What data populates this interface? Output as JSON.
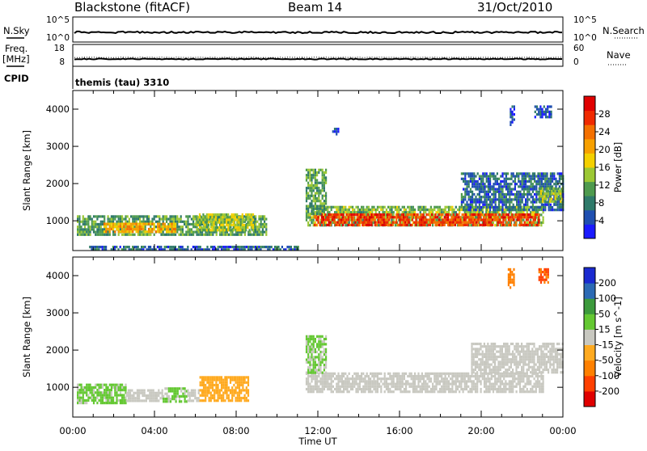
{
  "header": {
    "station": "Blackstone (fitACF)",
    "beam": "Beam 14",
    "date": "31/Oct/2010"
  },
  "top_panels": {
    "nsky_label": "N.Sky",
    "nsky_ticks": [
      "10^5",
      "10^0"
    ],
    "nsearch_label": "N.Search",
    "nsearch_ticks": [
      "10^5",
      "10^0"
    ],
    "freq_label_1": "Freq.",
    "freq_label_2": "[MHz]",
    "freq_ticks": [
      "18",
      "8"
    ],
    "nave_label": "Nave",
    "nave_ticks": [
      "60",
      "0"
    ],
    "cpid_label": "CPID",
    "cpid_value": "themis (tau) 3310"
  },
  "colorbars": {
    "power": {
      "label": "Power [dB]",
      "ticks": [
        "28",
        "24",
        "20",
        "16",
        "12",
        "8",
        "4"
      ],
      "colors": [
        "#1a1aff",
        "#1f4fb0",
        "#2f7a6a",
        "#4e9a4e",
        "#9cc834",
        "#f4d000",
        "#f7a000",
        "#f47000",
        "#f02a00",
        "#e00000"
      ]
    },
    "velocity": {
      "label": "Velocity [m s^-1]",
      "ticks": [
        "200",
        "100",
        "50",
        "15",
        "-15",
        "-50",
        "-100",
        "-200"
      ],
      "colors": [
        "#e00000",
        "#ff4000",
        "#ff8000",
        "#ffaa20",
        "#c8c8c0",
        "#64c832",
        "#3c9a3c",
        "#2c6ab4",
        "#1a2ad0"
      ]
    }
  },
  "chart_data": [
    {
      "type": "heatmap",
      "ylabel": "Slant Range [km]",
      "ylim": [
        200,
        4500
      ],
      "yticks": [
        "4000",
        "3000",
        "2000",
        "1000"
      ],
      "xlim": [
        0,
        24
      ],
      "xticks": [
        "00:00",
        "04:00",
        "08:00",
        "12:00",
        "16:00",
        "20:00",
        "00:00"
      ],
      "xlabel": "Time UT",
      "colorbar": "Power [dB]",
      "value_range": [
        0,
        30
      ],
      "bands": [
        {
          "t": [
            0.2,
            9.5
          ],
          "range": [
            620,
            1150
          ],
          "value": 10
        },
        {
          "t": [
            1.5,
            5.0
          ],
          "range": [
            720,
            950
          ],
          "value": 19
        },
        {
          "t": [
            6.0,
            8.8
          ],
          "range": [
            780,
            1200
          ],
          "value": 14
        },
        {
          "t": [
            11.4,
            23.0
          ],
          "range": [
            850,
            1400
          ],
          "value": 12
        },
        {
          "t": [
            11.8,
            22.8
          ],
          "range": [
            920,
            1200
          ],
          "value": 25
        },
        {
          "t": [
            11.4,
            12.4
          ],
          "range": [
            1200,
            2400
          ],
          "value": 10
        },
        {
          "t": [
            19.0,
            24.0
          ],
          "range": [
            1300,
            2300
          ],
          "value": 6
        },
        {
          "t": [
            22.8,
            24.0
          ],
          "range": [
            1500,
            1900
          ],
          "value": 13
        },
        {
          "t": [
            0.8,
            11.0
          ],
          "range": [
            230,
            330
          ],
          "value": 6
        },
        {
          "t": [
            12.7,
            13.0
          ],
          "range": [
            3300,
            3500
          ],
          "value": 5
        },
        {
          "t": [
            21.4,
            21.6
          ],
          "range": [
            3600,
            4100
          ],
          "value": 4
        },
        {
          "t": [
            22.6,
            23.4
          ],
          "range": [
            3800,
            4100
          ],
          "value": 4
        }
      ]
    },
    {
      "type": "heatmap",
      "ylabel": "Slant Range [km]",
      "ylim": [
        200,
        4500
      ],
      "yticks": [
        "4000",
        "3000",
        "2000",
        "1000"
      ],
      "xlim": [
        0,
        24
      ],
      "xticks": [
        "00:00",
        "04:00",
        "08:00",
        "12:00",
        "16:00",
        "20:00",
        "00:00"
      ],
      "xlabel": "Time UT",
      "colorbar": "Velocity [m s^-1]",
      "value_range": [
        -250,
        250
      ],
      "bands": [
        {
          "t": [
            0.2,
            2.6
          ],
          "range": [
            600,
            1100
          ],
          "value": 40
        },
        {
          "t": [
            2.6,
            4.4
          ],
          "range": [
            620,
            950
          ],
          "value": 0
        },
        {
          "t": [
            4.4,
            5.6
          ],
          "range": [
            600,
            1000
          ],
          "value": 40
        },
        {
          "t": [
            5.6,
            6.2
          ],
          "range": [
            650,
            950
          ],
          "value": 0
        },
        {
          "t": [
            6.2,
            8.6
          ],
          "range": [
            650,
            1300
          ],
          "value": -50
        },
        {
          "t": [
            11.4,
            23.0
          ],
          "range": [
            850,
            1400
          ],
          "value": 0
        },
        {
          "t": [
            11.4,
            12.4
          ],
          "range": [
            1400,
            2400
          ],
          "value": 30
        },
        {
          "t": [
            19.5,
            24.0
          ],
          "range": [
            1400,
            2200
          ],
          "value": 0
        },
        {
          "t": [
            21.3,
            21.6
          ],
          "range": [
            3700,
            4200
          ],
          "value": -120
        },
        {
          "t": [
            22.8,
            23.3
          ],
          "range": [
            3800,
            4200
          ],
          "value": -150
        }
      ]
    }
  ]
}
